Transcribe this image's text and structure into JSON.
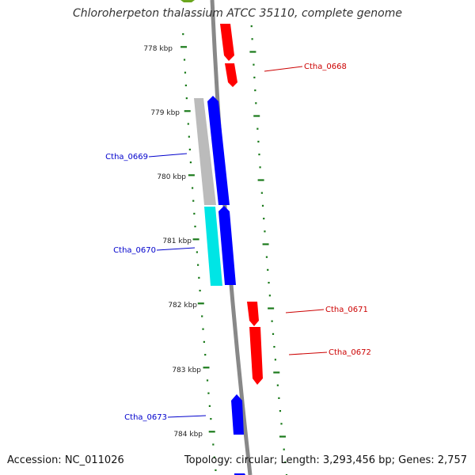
{
  "title": "Chloroherpeton thalassium ATCC 35110, complete genome",
  "footer": {
    "accession": "Accession: NC_011026",
    "summary": "Topology: circular; Length: 3,293,456 bp; Genes: 2,757"
  },
  "colors": {
    "backbone": "#888888",
    "tick": "#1a7a1a",
    "forward_gene": "#ff0000",
    "reverse_gene": "#0000ff",
    "gene_gray": "#bbbbbb",
    "gene_cyan": "#00e5e5",
    "label_forward": "#cc0000",
    "label_reverse": "#0000cc"
  },
  "scale_labels": [
    "778 kbp",
    "779 kbp",
    "780 kbp",
    "781 kbp",
    "782 kbp",
    "783 kbp",
    "784 kbp"
  ],
  "gene_labels": [
    {
      "text": "Ctha_0668",
      "strand": "forward"
    },
    {
      "text": "Ctha_0669",
      "strand": "reverse"
    },
    {
      "text": "Ctha_0670",
      "strand": "reverse"
    },
    {
      "text": "Ctha_0671",
      "strand": "forward"
    },
    {
      "text": "Ctha_0672",
      "strand": "forward"
    },
    {
      "text": "Ctha_0673",
      "strand": "reverse"
    }
  ]
}
